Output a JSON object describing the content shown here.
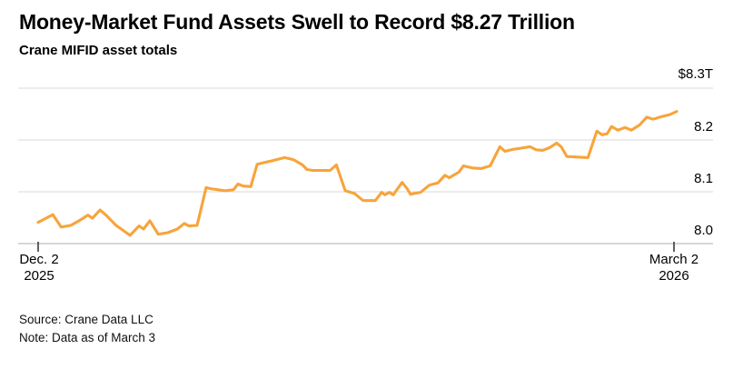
{
  "header": {
    "title": "Money-Market Fund Assets Swell to Record $8.27 Trillion",
    "subtitle": "Crane MIFID asset totals"
  },
  "footer": {
    "source": "Source: Crane Data LLC",
    "note": "Note: Data as of March 3"
  },
  "chart_data": {
    "type": "line",
    "title": "Crane MIFID asset totals",
    "unit": "USD trillions",
    "line_color": "#F7A43C",
    "grid_color": "#D9D9D9",
    "axis_color": "#BDBDBD",
    "tick_color": "#3A3A3A",
    "grid_on": true,
    "legend": "none",
    "ylim": [
      8.0,
      8.3
    ],
    "yticks": [
      {
        "label": "$8.3T",
        "value": 8.3
      },
      {
        "label": "8.2",
        "value": 8.2
      },
      {
        "label": "8.1",
        "value": 8.1
      },
      {
        "label": "8.0",
        "value": 8.0
      }
    ],
    "xticks": [
      {
        "line1": "Dec. 2",
        "line2": "2025"
      },
      {
        "line1": "March 2",
        "line2": "2026"
      }
    ],
    "series": [
      {
        "name": "Crane MIFID asset totals ($T)",
        "points": [
          [
            0.0,
            8.041
          ],
          [
            0.011,
            8.048
          ],
          [
            0.023,
            8.056
          ],
          [
            0.036,
            8.032
          ],
          [
            0.051,
            8.035
          ],
          [
            0.064,
            8.044
          ],
          [
            0.078,
            8.055
          ],
          [
            0.085,
            8.049
          ],
          [
            0.097,
            8.065
          ],
          [
            0.108,
            8.053
          ],
          [
            0.122,
            8.035
          ],
          [
            0.144,
            8.016
          ],
          [
            0.158,
            8.034
          ],
          [
            0.165,
            8.028
          ],
          [
            0.175,
            8.044
          ],
          [
            0.188,
            8.018
          ],
          [
            0.203,
            8.021
          ],
          [
            0.218,
            8.028
          ],
          [
            0.229,
            8.039
          ],
          [
            0.236,
            8.034
          ],
          [
            0.249,
            8.035
          ],
          [
            0.263,
            8.108
          ],
          [
            0.27,
            8.106
          ],
          [
            0.293,
            8.102
          ],
          [
            0.306,
            8.104
          ],
          [
            0.313,
            8.115
          ],
          [
            0.321,
            8.111
          ],
          [
            0.333,
            8.11
          ],
          [
            0.343,
            8.153
          ],
          [
            0.356,
            8.157
          ],
          [
            0.367,
            8.16
          ],
          [
            0.386,
            8.166
          ],
          [
            0.4,
            8.162
          ],
          [
            0.414,
            8.152
          ],
          [
            0.421,
            8.143
          ],
          [
            0.431,
            8.141
          ],
          [
            0.457,
            8.141
          ],
          [
            0.467,
            8.152
          ],
          [
            0.481,
            8.102
          ],
          [
            0.495,
            8.097
          ],
          [
            0.509,
            8.083
          ],
          [
            0.528,
            8.083
          ],
          [
            0.538,
            8.099
          ],
          [
            0.543,
            8.094
          ],
          [
            0.55,
            8.099
          ],
          [
            0.556,
            8.094
          ],
          [
            0.57,
            8.118
          ],
          [
            0.578,
            8.106
          ],
          [
            0.583,
            8.095
          ],
          [
            0.59,
            8.097
          ],
          [
            0.599,
            8.099
          ],
          [
            0.613,
            8.113
          ],
          [
            0.626,
            8.117
          ],
          [
            0.637,
            8.132
          ],
          [
            0.644,
            8.127
          ],
          [
            0.659,
            8.138
          ],
          [
            0.666,
            8.15
          ],
          [
            0.68,
            8.146
          ],
          [
            0.694,
            8.145
          ],
          [
            0.708,
            8.15
          ],
          [
            0.723,
            8.187
          ],
          [
            0.731,
            8.178
          ],
          [
            0.744,
            8.182
          ],
          [
            0.761,
            8.185
          ],
          [
            0.77,
            8.187
          ],
          [
            0.78,
            8.181
          ],
          [
            0.79,
            8.18
          ],
          [
            0.801,
            8.185
          ],
          [
            0.812,
            8.194
          ],
          [
            0.819,
            8.187
          ],
          [
            0.828,
            8.168
          ],
          [
            0.861,
            8.166
          ],
          [
            0.875,
            8.217
          ],
          [
            0.883,
            8.21
          ],
          [
            0.891,
            8.212
          ],
          [
            0.898,
            8.226
          ],
          [
            0.908,
            8.219
          ],
          [
            0.919,
            8.224
          ],
          [
            0.929,
            8.219
          ],
          [
            0.942,
            8.229
          ],
          [
            0.953,
            8.244
          ],
          [
            0.963,
            8.24
          ],
          [
            0.976,
            8.245
          ],
          [
            0.989,
            8.249
          ],
          [
            1.0,
            8.255
          ]
        ]
      }
    ]
  }
}
